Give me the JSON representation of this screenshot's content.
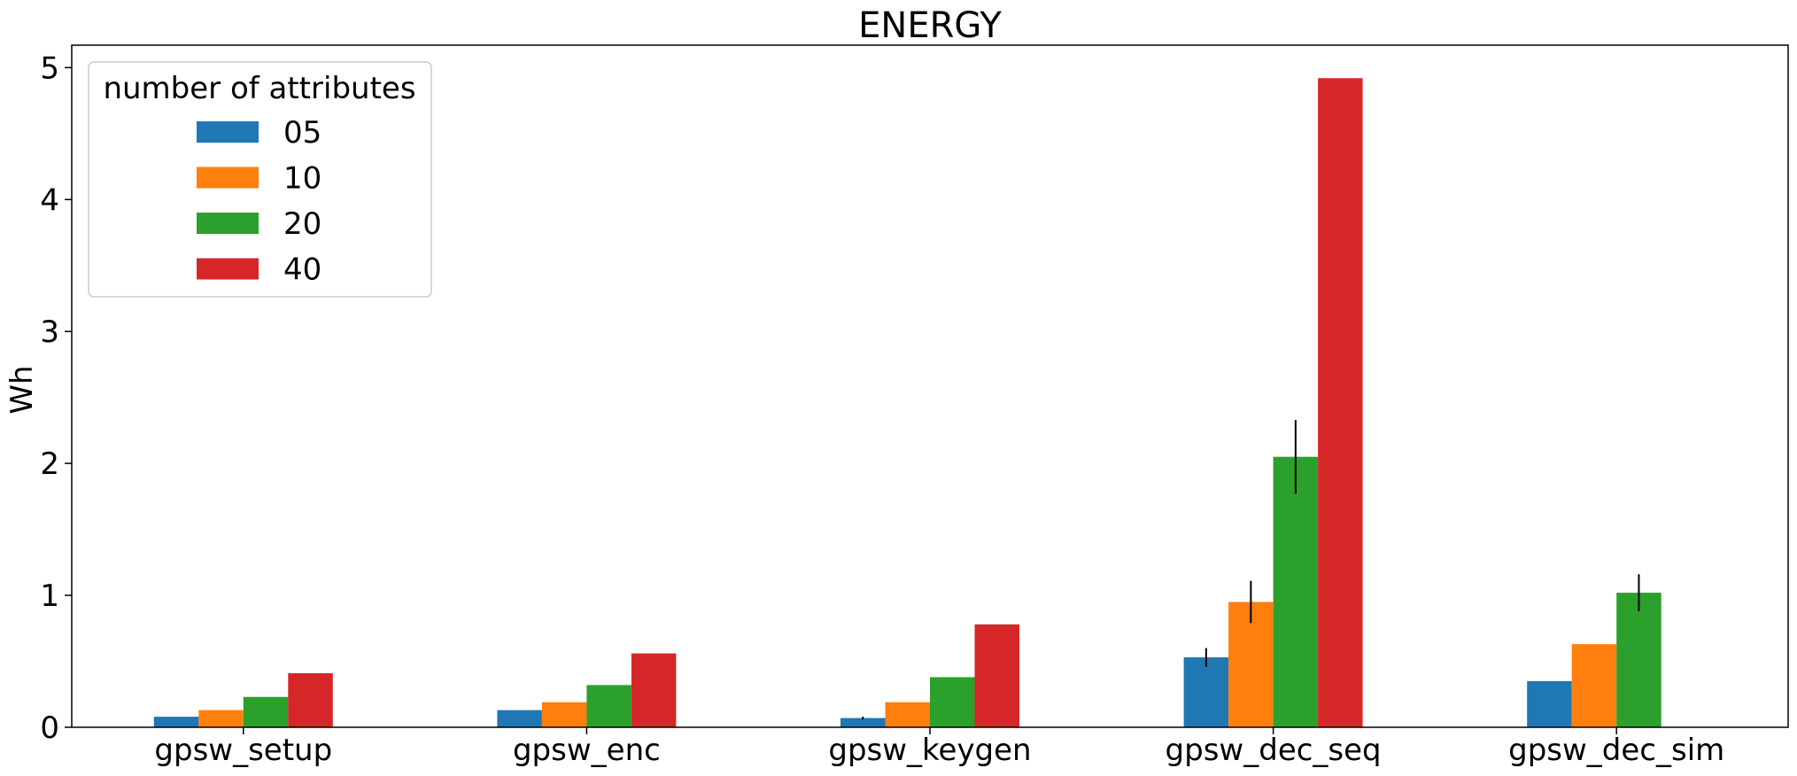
{
  "chart_data": {
    "type": "bar",
    "title": "ENERGY",
    "xlabel": "",
    "ylabel": "Wh",
    "ylim": [
      0,
      5.17
    ],
    "yticks": [
      0,
      1,
      2,
      3,
      4,
      5
    ],
    "grid": false,
    "categories": [
      "gpsw_setup",
      "gpsw_enc",
      "gpsw_keygen",
      "gpsw_dec_seq",
      "gpsw_dec_sim"
    ],
    "legend": {
      "title": "number of attributes",
      "placement": "upper-left"
    },
    "series": [
      {
        "name": "05",
        "color": "#1f77b4",
        "values": [
          0.08,
          0.13,
          0.07,
          0.53,
          0.35
        ],
        "errors": [
          0,
          0,
          0.01,
          0.07,
          0
        ]
      },
      {
        "name": "10",
        "color": "#ff7f0e",
        "values": [
          0.13,
          0.19,
          0.19,
          0.95,
          0.63
        ],
        "errors": [
          0,
          0,
          0,
          0.16,
          0
        ]
      },
      {
        "name": "20",
        "color": "#2ca02c",
        "values": [
          0.23,
          0.32,
          0.38,
          2.05,
          1.02
        ],
        "errors": [
          0,
          0,
          0,
          0.28,
          0.14
        ]
      },
      {
        "name": "40",
        "color": "#d62728",
        "values": [
          0.41,
          0.56,
          0.78,
          4.92,
          null
        ],
        "errors": [
          0,
          0,
          0,
          0,
          0
        ]
      }
    ]
  }
}
